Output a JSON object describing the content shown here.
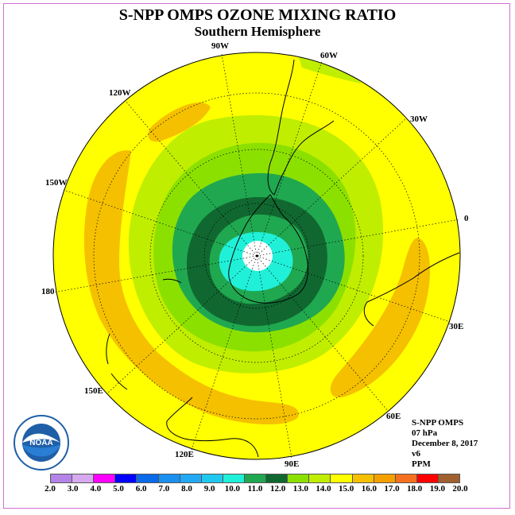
{
  "title": "S-NPP OMPS OZONE MIXING RATIO",
  "subtitle": "Southern Hemisphere",
  "map": {
    "projection": "polar-stereographic-south",
    "longitude_labels": [
      "90W",
      "60W",
      "30W",
      "0",
      "30E",
      "60E",
      "90E",
      "120E",
      "150E",
      "180",
      "150W",
      "120W"
    ]
  },
  "info": {
    "instrument": "S-NPP OMPS",
    "level": "07 hPa",
    "date": "December 8, 2017",
    "version": "v6",
    "units": "PPM"
  },
  "logo": {
    "text": "NOAA",
    "icon": "noaa-logo"
  },
  "colorbar": {
    "labels": [
      "2.0",
      "3.0",
      "4.0",
      "5.0",
      "6.0",
      "7.0",
      "8.0",
      "9.0",
      "10.0",
      "11.0",
      "12.0",
      "13.0",
      "14.0",
      "15.0",
      "16.0",
      "17.0",
      "18.0",
      "19.0",
      "20.0"
    ],
    "colors": [
      "#b383e8",
      "#d7aaf0",
      "#ff00ff",
      "#0000ff",
      "#0a6ae8",
      "#1a90f0",
      "#22a8f5",
      "#20c8f0",
      "#20f0d8",
      "#20a850",
      "#106830",
      "#8ce000",
      "#c0ee00",
      "#ffff00",
      "#f5c000",
      "#f5a000",
      "#f57020",
      "#ff0000",
      "#a06030"
    ]
  }
}
